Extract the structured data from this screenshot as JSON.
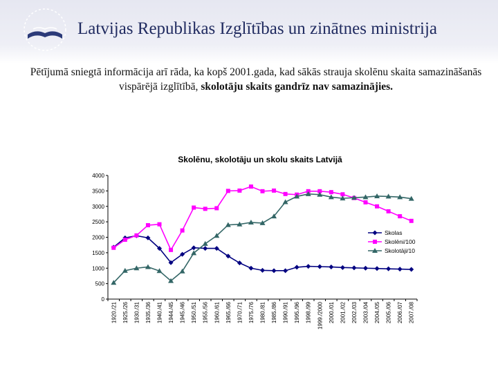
{
  "header": {
    "title": "Latvijas Republikas Izglītības un zinātnes ministrija",
    "background": "#e8e9f2",
    "title_color": "#1f2a5f"
  },
  "paragraph": {
    "part1": "Pētījumā sniegtā informācija arī rāda, ka kopš 2001.gada, kad sākās strauja skolēnu skaita samazināšanās vispārējā izglītībā, ",
    "bold": "skolotāju skaits gandrīz nav samazinājies."
  },
  "chart_data": {
    "type": "line",
    "title": "Skolēnu, skolotāju un skolu skaits Latvijā",
    "categories": [
      "1920./21",
      "1925./26",
      "1930./31",
      "1935./36",
      "1940./41",
      "1944./45",
      "1945./46",
      "1950./51",
      "1955./56",
      "1960./61",
      "1965./66",
      "1970./71",
      "1975./76",
      "1980./81",
      "1985./86",
      "1990./91",
      "1995./96",
      "1998./99",
      "1999./2000",
      "2000./01",
      "2001./02",
      "2002./03",
      "2003./04",
      "2004./05",
      "2005./06",
      "2006./07",
      "2007./08"
    ],
    "ylim": [
      0,
      4000
    ],
    "yticks": [
      0,
      500,
      1000,
      1500,
      2000,
      2500,
      3000,
      3500,
      4000
    ],
    "grid": false,
    "legend_position": "right",
    "series": [
      {
        "name": "Skolas",
        "color": "#000080",
        "marker": "diamond",
        "values": [
          1680,
          1980,
          2050,
          1980,
          1640,
          1180,
          1450,
          1660,
          1640,
          1640,
          1390,
          1170,
          1000,
          930,
          920,
          920,
          1030,
          1060,
          1050,
          1040,
          1020,
          1010,
          1000,
          990,
          980,
          970,
          960
        ]
      },
      {
        "name": "Skolēni/100",
        "color": "#ff00ff",
        "marker": "square",
        "values": [
          1660,
          1920,
          2060,
          2390,
          2420,
          1590,
          2220,
          2960,
          2920,
          2940,
          3500,
          3510,
          3640,
          3490,
          3510,
          3400,
          3380,
          3490,
          3490,
          3460,
          3390,
          3270,
          3130,
          3000,
          2840,
          2680,
          2530
        ]
      },
      {
        "name": "Skolotāji/10",
        "color": "#336666",
        "marker": "triangle",
        "values": [
          530,
          920,
          1000,
          1040,
          910,
          590,
          900,
          1490,
          1790,
          2050,
          2400,
          2420,
          2480,
          2460,
          2680,
          3140,
          3320,
          3400,
          3380,
          3300,
          3260,
          3280,
          3300,
          3330,
          3320,
          3300,
          3250
        ]
      }
    ]
  }
}
